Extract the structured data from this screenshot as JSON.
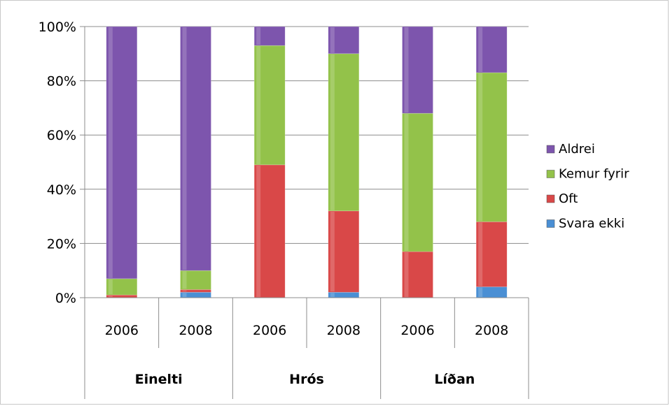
{
  "chart_data": {
    "type": "bar",
    "stacked": true,
    "title": "",
    "xlabel": "",
    "ylabel": "",
    "ylim": [
      0,
      100
    ],
    "y_ticks": [
      "0%",
      "20%",
      "40%",
      "60%",
      "80%",
      "100%"
    ],
    "groups": [
      {
        "name": "Einelti",
        "categories": [
          "2006",
          "2008"
        ]
      },
      {
        "name": "Hrós",
        "categories": [
          "2006",
          "2008"
        ]
      },
      {
        "name": "Líðan",
        "categories": [
          "2006",
          "2008"
        ]
      }
    ],
    "categories": [
      "2006",
      "2008",
      "2006",
      "2008",
      "2006",
      "2008"
    ],
    "series": [
      {
        "name": "Svara ekki",
        "color": "#4a8fd4",
        "values": [
          0,
          2,
          0,
          2,
          0,
          4
        ]
      },
      {
        "name": "Oft",
        "color": "#d94848",
        "values": [
          1,
          1,
          49,
          30,
          17,
          24
        ]
      },
      {
        "name": "Kemur fyrir",
        "color": "#93c24a",
        "values": [
          6,
          7,
          44,
          58,
          51,
          55
        ]
      },
      {
        "name": "Aldrei",
        "color": "#7d55ad",
        "values": [
          93,
          90,
          7,
          10,
          32,
          17
        ]
      }
    ],
    "legend": "right",
    "grid": true
  }
}
